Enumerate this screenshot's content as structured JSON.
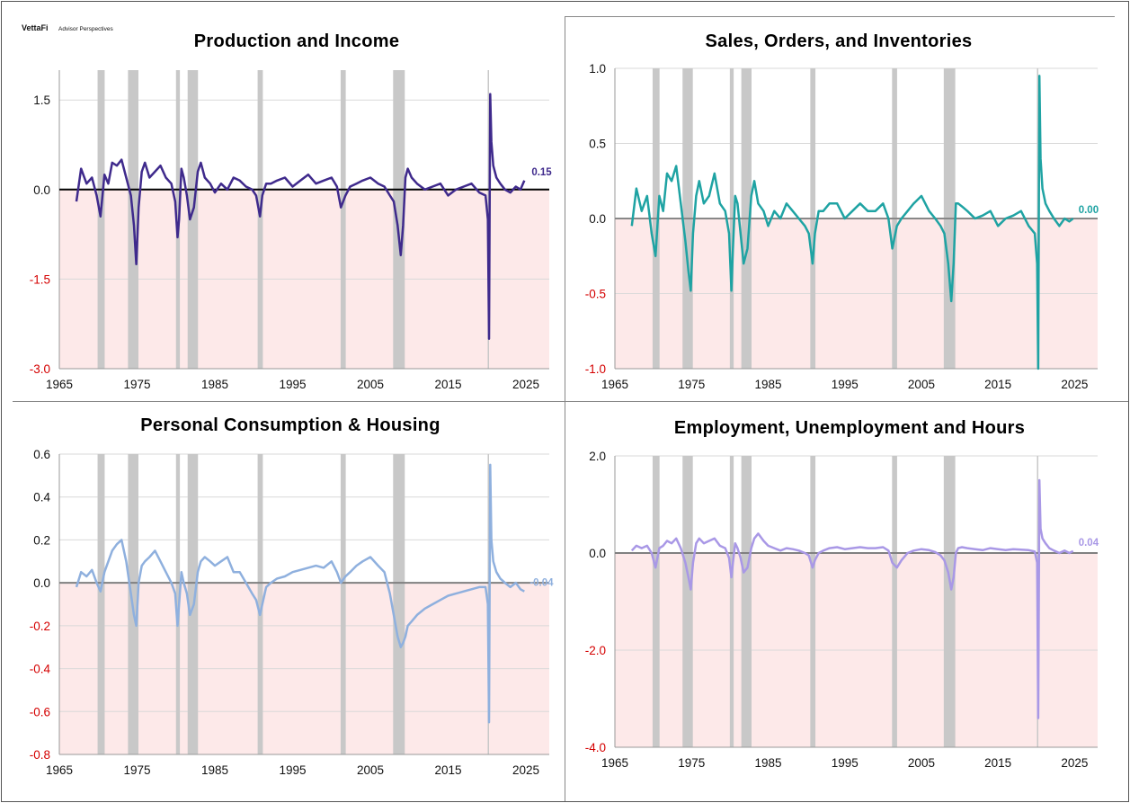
{
  "brand": {
    "name": "VettaFi",
    "sub": "Advisor Perspectives"
  },
  "recessions": [
    [
      1969.92,
      1970.83
    ],
    [
      1973.83,
      1975.17
    ],
    [
      1980.0,
      1980.5
    ],
    [
      1981.5,
      1982.83
    ],
    [
      1990.5,
      1991.17
    ],
    [
      2001.17,
      2001.83
    ],
    [
      2007.92,
      2009.42
    ],
    [
      2020.08,
      2020.25
    ]
  ],
  "charts": [
    {
      "key": "pi",
      "title": "Production and Income",
      "color": "#3f2a8c",
      "zero_line_color": "#000000",
      "xlim": [
        1965,
        2028
      ],
      "ylim": [
        -3.0,
        2.0
      ],
      "xticks": [
        1965,
        1975,
        1985,
        1995,
        2005,
        2015,
        2025
      ],
      "yticks": [
        {
          "value": 1.5,
          "label": "1.5"
        },
        {
          "value": 0.0,
          "label": "0.0"
        },
        {
          "value": -1.5,
          "label": "-1.5"
        },
        {
          "value": -3.0,
          "label": "-3.0"
        }
      ],
      "end_label": "0.15",
      "x": [
        1967.2,
        1967.8,
        1968.5,
        1969.2,
        1969.8,
        1970.3,
        1970.8,
        1971.3,
        1971.8,
        1972.4,
        1973.0,
        1973.6,
        1974.2,
        1974.6,
        1974.9,
        1975.2,
        1975.6,
        1976.0,
        1976.6,
        1977.3,
        1978.0,
        1978.7,
        1979.4,
        1979.9,
        1980.2,
        1980.4,
        1980.7,
        1981.0,
        1981.4,
        1981.8,
        1982.3,
        1982.8,
        1983.2,
        1983.7,
        1984.4,
        1985.0,
        1985.8,
        1986.6,
        1987.4,
        1988.2,
        1989.0,
        1989.8,
        1990.3,
        1990.8,
        1991.1,
        1991.6,
        1992.2,
        1993.0,
        1994.0,
        1995.0,
        1996.0,
        1997.0,
        1998.0,
        1999.0,
        2000.0,
        2000.7,
        2001.2,
        2001.8,
        2002.4,
        2003.2,
        2004.0,
        2005.0,
        2006.0,
        2006.8,
        2007.5,
        2008.0,
        2008.5,
        2008.9,
        2009.2,
        2009.5,
        2009.8,
        2010.3,
        2011.0,
        2012.0,
        2013.0,
        2014.0,
        2015.0,
        2016.0,
        2017.0,
        2018.0,
        2019.0,
        2019.8,
        2020.1,
        2020.25,
        2020.4,
        2020.55,
        2020.8,
        2021.2,
        2021.7,
        2022.3,
        2023.0,
        2023.7,
        2024.3,
        2024.8
      ],
      "y": [
        -0.2,
        0.35,
        0.1,
        0.2,
        -0.1,
        -0.45,
        0.25,
        0.1,
        0.45,
        0.4,
        0.5,
        0.2,
        -0.1,
        -0.6,
        -1.25,
        -0.3,
        0.3,
        0.45,
        0.2,
        0.3,
        0.4,
        0.2,
        0.1,
        -0.2,
        -0.8,
        -0.5,
        0.35,
        0.2,
        -0.1,
        -0.5,
        -0.3,
        0.3,
        0.45,
        0.2,
        0.1,
        -0.05,
        0.1,
        0.0,
        0.2,
        0.15,
        0.05,
        0.0,
        -0.1,
        -0.45,
        -0.1,
        0.1,
        0.1,
        0.15,
        0.2,
        0.05,
        0.15,
        0.25,
        0.1,
        0.15,
        0.2,
        0.05,
        -0.3,
        -0.1,
        0.05,
        0.1,
        0.15,
        0.2,
        0.1,
        0.05,
        -0.1,
        -0.2,
        -0.6,
        -1.1,
        -0.6,
        0.2,
        0.35,
        0.2,
        0.1,
        0.0,
        0.05,
        0.1,
        -0.1,
        0.0,
        0.05,
        0.1,
        -0.05,
        -0.1,
        -0.5,
        -2.5,
        1.6,
        0.8,
        0.4,
        0.2,
        0.1,
        0.0,
        -0.05,
        0.05,
        0.0,
        0.15
      ]
    },
    {
      "key": "soi",
      "title": "Sales, Orders, and Inventories",
      "color": "#1fa3a3",
      "zero_line_color": "#888888",
      "xlim": [
        1965,
        2028
      ],
      "ylim": [
        -1.0,
        1.0
      ],
      "xticks": [
        1965,
        1975,
        1985,
        1995,
        2005,
        2015,
        2025
      ],
      "yticks": [
        {
          "value": 1.0,
          "label": "1.0"
        },
        {
          "value": 0.5,
          "label": "0.5"
        },
        {
          "value": 0.0,
          "label": "0.0"
        },
        {
          "value": -0.5,
          "label": "-0.5"
        },
        {
          "value": -1.0,
          "label": "-1.0"
        }
      ],
      "end_label": "0.00",
      "x": [
        1967.2,
        1967.8,
        1968.5,
        1969.2,
        1969.8,
        1970.3,
        1970.8,
        1971.3,
        1971.8,
        1972.4,
        1973.0,
        1973.6,
        1974.2,
        1974.6,
        1974.9,
        1975.2,
        1975.6,
        1976.0,
        1976.6,
        1977.3,
        1978.0,
        1978.7,
        1979.4,
        1979.9,
        1980.2,
        1980.4,
        1980.7,
        1981.0,
        1981.4,
        1981.8,
        1982.3,
        1982.8,
        1983.2,
        1983.7,
        1984.4,
        1985.0,
        1985.8,
        1986.6,
        1987.4,
        1988.2,
        1989.0,
        1989.8,
        1990.3,
        1990.8,
        1991.1,
        1991.6,
        1992.2,
        1993.0,
        1994.0,
        1995.0,
        1996.0,
        1997.0,
        1998.0,
        1999.0,
        2000.0,
        2000.7,
        2001.2,
        2001.8,
        2002.4,
        2003.2,
        2004.0,
        2005.0,
        2006.0,
        2006.8,
        2007.5,
        2008.0,
        2008.5,
        2008.9,
        2009.2,
        2009.5,
        2009.8,
        2010.3,
        2011.0,
        2012.0,
        2013.0,
        2014.0,
        2015.0,
        2016.0,
        2017.0,
        2018.0,
        2019.0,
        2019.8,
        2020.1,
        2020.25,
        2020.4,
        2020.55,
        2020.8,
        2021.2,
        2021.7,
        2022.3,
        2023.0,
        2023.7,
        2024.3,
        2024.8
      ],
      "y": [
        -0.05,
        0.2,
        0.05,
        0.15,
        -0.1,
        -0.25,
        0.15,
        0.05,
        0.3,
        0.25,
        0.35,
        0.1,
        -0.15,
        -0.35,
        -0.48,
        -0.1,
        0.15,
        0.25,
        0.1,
        0.15,
        0.3,
        0.1,
        0.05,
        -0.1,
        -0.48,
        -0.2,
        0.15,
        0.1,
        -0.1,
        -0.3,
        -0.2,
        0.15,
        0.25,
        0.1,
        0.05,
        -0.05,
        0.05,
        0.0,
        0.1,
        0.05,
        0.0,
        -0.05,
        -0.1,
        -0.3,
        -0.1,
        0.05,
        0.05,
        0.1,
        0.1,
        0.0,
        0.05,
        0.1,
        0.05,
        0.05,
        0.1,
        0.0,
        -0.2,
        -0.05,
        0.0,
        0.05,
        0.1,
        0.15,
        0.05,
        0.0,
        -0.05,
        -0.1,
        -0.3,
        -0.55,
        -0.3,
        0.1,
        0.1,
        0.08,
        0.05,
        0.0,
        0.02,
        0.05,
        -0.05,
        0.0,
        0.02,
        0.05,
        -0.05,
        -0.1,
        -0.3,
        -1.0,
        0.95,
        0.4,
        0.2,
        0.1,
        0.05,
        0.0,
        -0.05,
        0.0,
        -0.02,
        0.0
      ]
    },
    {
      "key": "pch",
      "title": "Personal Consumption & Housing",
      "color": "#8fb0de",
      "zero_line_color": "#808080",
      "xlim": [
        1965,
        2028
      ],
      "ylim": [
        -0.8,
        0.6
      ],
      "xticks": [
        1965,
        1975,
        1985,
        1995,
        2005,
        2015,
        2025
      ],
      "yticks": [
        {
          "value": 0.6,
          "label": "0.6"
        },
        {
          "value": 0.4,
          "label": "0.4"
        },
        {
          "value": 0.2,
          "label": "0.2"
        },
        {
          "value": 0.0,
          "label": "0.0"
        },
        {
          "value": -0.2,
          "label": "-0.2"
        },
        {
          "value": -0.4,
          "label": "-0.4"
        },
        {
          "value": -0.6,
          "label": "-0.6"
        },
        {
          "value": -0.8,
          "label": "-0.8"
        }
      ],
      "end_label": "-0.04",
      "x": [
        1967.2,
        1967.8,
        1968.5,
        1969.2,
        1969.8,
        1970.3,
        1970.8,
        1971.3,
        1971.8,
        1972.4,
        1973.0,
        1973.6,
        1974.2,
        1974.6,
        1974.9,
        1975.2,
        1975.6,
        1976.0,
        1976.6,
        1977.3,
        1978.0,
        1978.7,
        1979.4,
        1979.9,
        1980.2,
        1980.4,
        1980.7,
        1981.0,
        1981.4,
        1981.8,
        1982.3,
        1982.8,
        1983.2,
        1983.7,
        1984.4,
        1985.0,
        1985.8,
        1986.6,
        1987.4,
        1988.2,
        1989.0,
        1989.8,
        1990.3,
        1990.8,
        1991.1,
        1991.6,
        1992.2,
        1993.0,
        1994.0,
        1995.0,
        1996.0,
        1997.0,
        1998.0,
        1999.0,
        2000.0,
        2000.7,
        2001.2,
        2001.8,
        2002.4,
        2003.2,
        2004.0,
        2005.0,
        2006.0,
        2006.8,
        2007.5,
        2008.0,
        2008.5,
        2008.9,
        2009.2,
        2009.5,
        2009.8,
        2010.3,
        2011.0,
        2012.0,
        2013.0,
        2014.0,
        2015.0,
        2016.0,
        2017.0,
        2018.0,
        2019.0,
        2019.8,
        2020.1,
        2020.25,
        2020.4,
        2020.55,
        2020.8,
        2021.2,
        2021.7,
        2022.3,
        2023.0,
        2023.7,
        2024.3,
        2024.8
      ],
      "y": [
        -0.02,
        0.05,
        0.03,
        0.06,
        0.0,
        -0.04,
        0.05,
        0.1,
        0.15,
        0.18,
        0.2,
        0.1,
        -0.05,
        -0.15,
        -0.2,
        0.0,
        0.08,
        0.1,
        0.12,
        0.15,
        0.1,
        0.05,
        0.0,
        -0.05,
        -0.2,
        -0.1,
        0.05,
        0.0,
        -0.05,
        -0.15,
        -0.1,
        0.05,
        0.1,
        0.12,
        0.1,
        0.08,
        0.1,
        0.12,
        0.05,
        0.05,
        0.0,
        -0.05,
        -0.08,
        -0.15,
        -0.1,
        -0.02,
        0.0,
        0.02,
        0.03,
        0.05,
        0.06,
        0.07,
        0.08,
        0.07,
        0.1,
        0.05,
        0.0,
        0.03,
        0.05,
        0.08,
        0.1,
        0.12,
        0.08,
        0.05,
        -0.05,
        -0.15,
        -0.25,
        -0.3,
        -0.28,
        -0.25,
        -0.2,
        -0.18,
        -0.15,
        -0.12,
        -0.1,
        -0.08,
        -0.06,
        -0.05,
        -0.04,
        -0.03,
        -0.02,
        -0.02,
        -0.1,
        -0.65,
        0.55,
        0.2,
        0.1,
        0.05,
        0.02,
        0.0,
        -0.02,
        0.0,
        -0.03,
        -0.04
      ]
    },
    {
      "key": "euh",
      "title": "Employment, Unemployment  and Hours",
      "color": "#a998e6",
      "zero_line_color": "#808080",
      "xlim": [
        1965,
        2028
      ],
      "ylim": [
        -4.0,
        2.0
      ],
      "xticks": [
        1965,
        1975,
        1985,
        1995,
        2005,
        2015,
        2025
      ],
      "yticks": [
        {
          "value": 2.0,
          "label": "2.0"
        },
        {
          "value": 0.0,
          "label": "0.0"
        },
        {
          "value": -2.0,
          "label": "-2.0"
        },
        {
          "value": -4.0,
          "label": "-4.0"
        }
      ],
      "end_label": "0.04",
      "x": [
        1967.2,
        1967.8,
        1968.5,
        1969.2,
        1969.8,
        1970.3,
        1970.8,
        1971.3,
        1971.8,
        1972.4,
        1973.0,
        1973.6,
        1974.2,
        1974.6,
        1974.9,
        1975.2,
        1975.6,
        1976.0,
        1976.6,
        1977.3,
        1978.0,
        1978.7,
        1979.4,
        1979.9,
        1980.2,
        1980.4,
        1980.7,
        1981.0,
        1981.4,
        1981.8,
        1982.3,
        1982.8,
        1983.2,
        1983.7,
        1984.4,
        1985.0,
        1985.8,
        1986.6,
        1987.4,
        1988.2,
        1989.0,
        1989.8,
        1990.3,
        1990.8,
        1991.1,
        1991.6,
        1992.2,
        1993.0,
        1994.0,
        1995.0,
        1996.0,
        1997.0,
        1998.0,
        1999.0,
        2000.0,
        2000.7,
        2001.2,
        2001.8,
        2002.4,
        2003.2,
        2004.0,
        2005.0,
        2006.0,
        2006.8,
        2007.5,
        2008.0,
        2008.5,
        2008.9,
        2009.2,
        2009.5,
        2009.8,
        2010.3,
        2011.0,
        2012.0,
        2013.0,
        2014.0,
        2015.0,
        2016.0,
        2017.0,
        2018.0,
        2019.0,
        2019.8,
        2020.1,
        2020.25,
        2020.4,
        2020.55,
        2020.8,
        2021.2,
        2021.7,
        2022.3,
        2023.0,
        2023.7,
        2024.3,
        2024.8
      ],
      "y": [
        0.05,
        0.15,
        0.1,
        0.15,
        0.0,
        -0.3,
        0.1,
        0.15,
        0.25,
        0.2,
        0.3,
        0.1,
        -0.2,
        -0.5,
        -0.75,
        -0.2,
        0.2,
        0.3,
        0.2,
        0.25,
        0.3,
        0.15,
        0.1,
        -0.1,
        -0.5,
        -0.2,
        0.2,
        0.1,
        -0.1,
        -0.4,
        -0.3,
        0.1,
        0.3,
        0.4,
        0.25,
        0.15,
        0.1,
        0.05,
        0.1,
        0.08,
        0.05,
        0.0,
        -0.05,
        -0.3,
        -0.15,
        0.0,
        0.05,
        0.1,
        0.12,
        0.08,
        0.1,
        0.12,
        0.1,
        0.1,
        0.12,
        0.05,
        -0.2,
        -0.3,
        -0.15,
        0.0,
        0.05,
        0.08,
        0.06,
        0.02,
        -0.05,
        -0.15,
        -0.4,
        -0.75,
        -0.5,
        0.0,
        0.1,
        0.12,
        0.1,
        0.08,
        0.06,
        0.1,
        0.08,
        0.06,
        0.08,
        0.07,
        0.06,
        0.03,
        -0.2,
        -3.4,
        1.5,
        0.5,
        0.3,
        0.2,
        0.1,
        0.05,
        0.0,
        0.05,
        0.0,
        0.04
      ]
    }
  ]
}
